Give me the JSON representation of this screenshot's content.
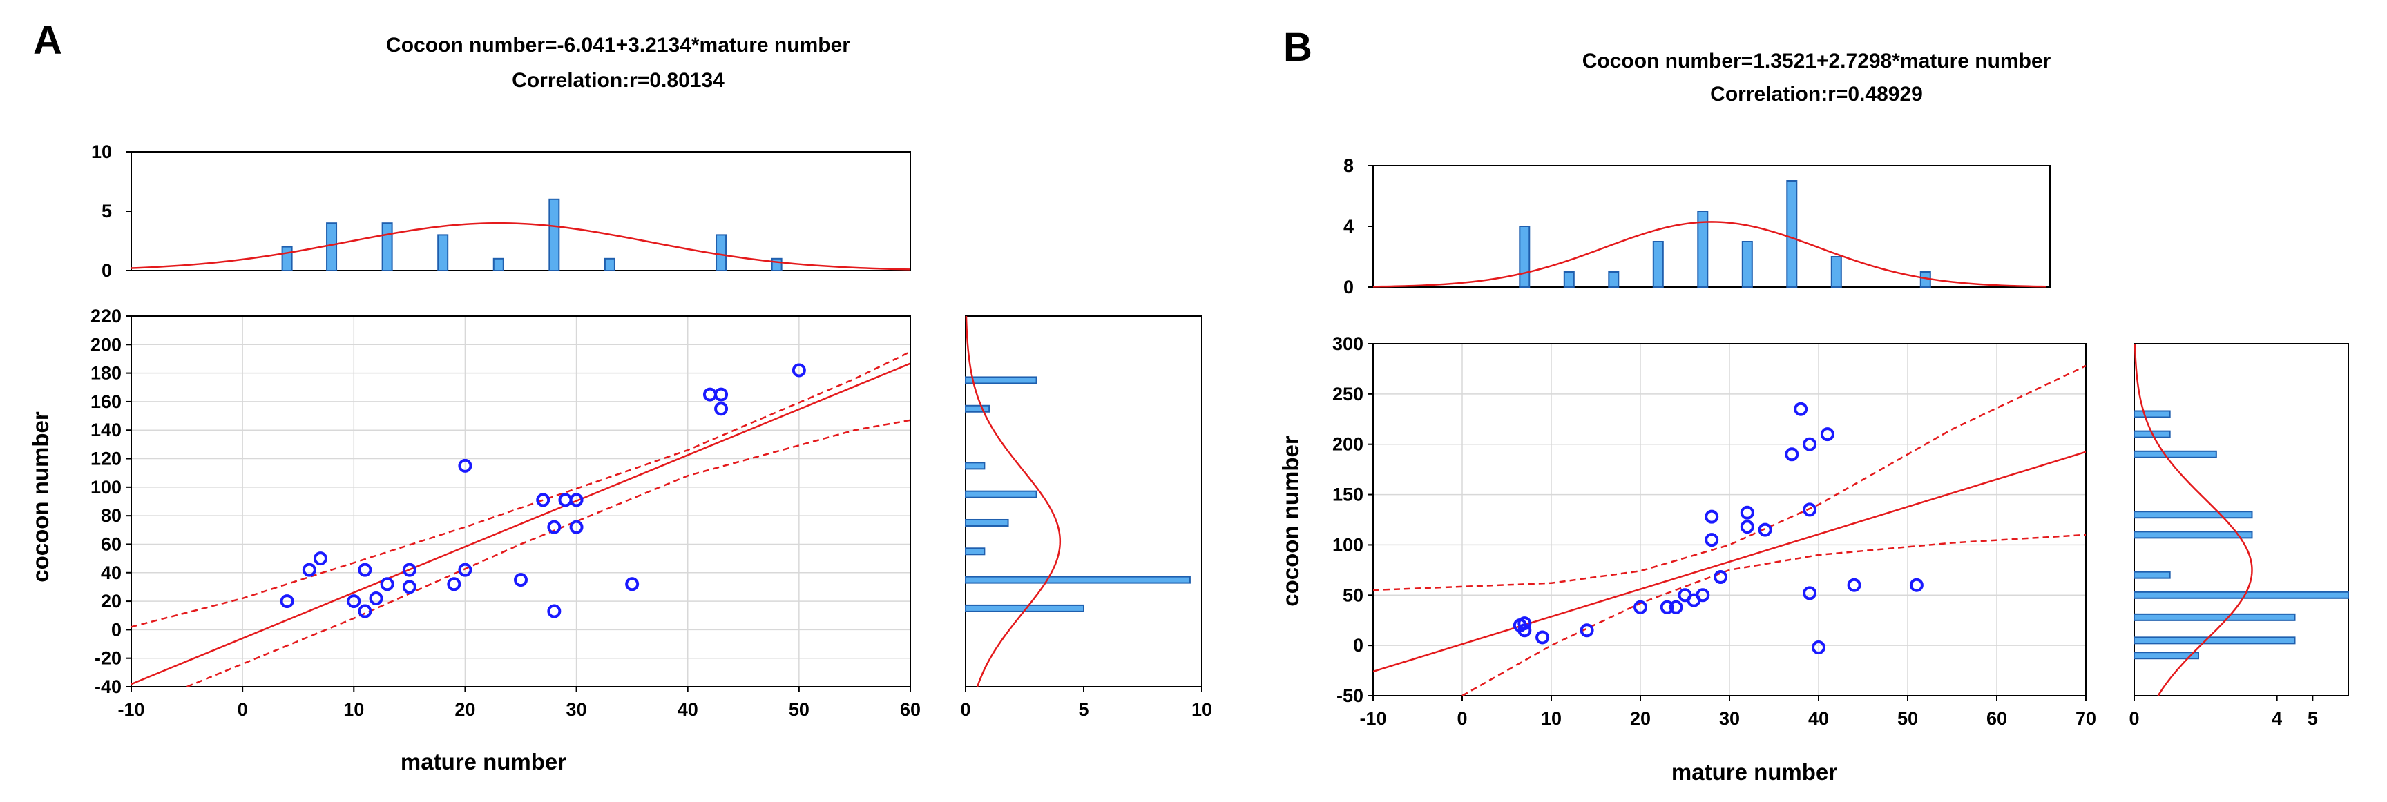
{
  "chart_data": [
    {
      "panel": "A",
      "type": "scatter",
      "title": "Cocoon number=-6.041+3.2134*mature number",
      "subtitle": "Correlation:r=0.80134",
      "xlabel": "mature number",
      "ylabel": "cocoon number",
      "xlim": [
        -10,
        60
      ],
      "ylim": [
        -40,
        220
      ],
      "xticks": [
        -10,
        0,
        10,
        20,
        30,
        40,
        50,
        60
      ],
      "yticks": [
        -40,
        -20,
        0,
        20,
        40,
        60,
        80,
        100,
        120,
        140,
        160,
        180,
        200,
        220
      ],
      "regression": {
        "intercept": -6.041,
        "slope": 3.2134
      },
      "confidence_band": {
        "upper": [
          [
            -10,
            2
          ],
          [
            0,
            22
          ],
          [
            20,
            72
          ],
          [
            40,
            126
          ],
          [
            55,
            176
          ],
          [
            60,
            195
          ]
        ],
        "lower": [
          [
            -5,
            -40
          ],
          [
            10,
            8
          ],
          [
            25,
            60
          ],
          [
            40,
            108
          ],
          [
            55,
            140
          ],
          [
            60,
            147
          ]
        ]
      },
      "points": [
        {
          "x": 4,
          "y": 20
        },
        {
          "x": 6,
          "y": 42
        },
        {
          "x": 7,
          "y": 50
        },
        {
          "x": 10,
          "y": 20
        },
        {
          "x": 11,
          "y": 13
        },
        {
          "x": 11,
          "y": 42
        },
        {
          "x": 12,
          "y": 22
        },
        {
          "x": 13,
          "y": 32
        },
        {
          "x": 15,
          "y": 30
        },
        {
          "x": 15,
          "y": 42
        },
        {
          "x": 19,
          "y": 32
        },
        {
          "x": 20,
          "y": 42
        },
        {
          "x": 20,
          "y": 115
        },
        {
          "x": 25,
          "y": 35
        },
        {
          "x": 27,
          "y": 91
        },
        {
          "x": 28,
          "y": 13
        },
        {
          "x": 28,
          "y": 72
        },
        {
          "x": 29,
          "y": 91
        },
        {
          "x": 30,
          "y": 72
        },
        {
          "x": 30,
          "y": 91
        },
        {
          "x": 35,
          "y": 32
        },
        {
          "x": 42,
          "y": 165
        },
        {
          "x": 43,
          "y": 155
        },
        {
          "x": 43,
          "y": 165
        },
        {
          "x": 50,
          "y": 182
        }
      ],
      "top_histogram": {
        "ylim": [
          0,
          10
        ],
        "yticks": [
          0,
          5,
          10
        ],
        "bins": [
          {
            "x": 4,
            "count": 2
          },
          {
            "x": 8,
            "count": 4
          },
          {
            "x": 13,
            "count": 4
          },
          {
            "x": 18,
            "count": 3
          },
          {
            "x": 23,
            "count": 1
          },
          {
            "x": 28,
            "count": 6
          },
          {
            "x": 33,
            "count": 1
          },
          {
            "x": 43,
            "count": 3
          },
          {
            "x": 48,
            "count": 1
          }
        ],
        "normal_curve": {
          "mean": 23,
          "sd": 13.5,
          "peak": 4
        }
      },
      "right_histogram": {
        "xlim": [
          0,
          10
        ],
        "xticks": [
          0,
          5,
          10
        ],
        "bins": [
          {
            "y": 15,
            "count": 5
          },
          {
            "y": 35,
            "count": 9.5
          },
          {
            "y": 55,
            "count": 0.8
          },
          {
            "y": 75,
            "count": 1.8
          },
          {
            "y": 95,
            "count": 3
          },
          {
            "y": 115,
            "count": 0.8
          },
          {
            "y": 155,
            "count": 1
          },
          {
            "y": 175,
            "count": 3
          }
        ],
        "normal_curve": {
          "mean": 62,
          "sd": 50,
          "peak": 4
        }
      }
    },
    {
      "panel": "B",
      "type": "scatter",
      "title": "Cocoon number=1.3521+2.7298*mature number",
      "subtitle": "Correlation:r=0.48929",
      "xlabel": "mature number",
      "ylabel": "cocoon number",
      "xlim": [
        -10,
        70
      ],
      "ylim": [
        -50,
        300
      ],
      "xticks": [
        -10,
        0,
        10,
        20,
        30,
        40,
        50,
        60,
        70
      ],
      "yticks": [
        -50,
        0,
        50,
        100,
        150,
        200,
        250,
        300
      ],
      "regression": {
        "intercept": 1.3521,
        "slope": 2.7298
      },
      "confidence_band": {
        "upper": [
          [
            -10,
            55
          ],
          [
            10,
            62
          ],
          [
            20,
            74
          ],
          [
            30,
            100
          ],
          [
            40,
            140
          ],
          [
            55,
            215
          ],
          [
            70,
            278
          ]
        ],
        "lower": [
          [
            0,
            -50
          ],
          [
            10,
            0
          ],
          [
            20,
            42
          ],
          [
            30,
            75
          ],
          [
            40,
            90
          ],
          [
            55,
            102
          ],
          [
            70,
            110
          ]
        ]
      },
      "points": [
        {
          "x": 6.5,
          "y": 20
        },
        {
          "x": 7,
          "y": 15
        },
        {
          "x": 7,
          "y": 22
        },
        {
          "x": 9,
          "y": 8
        },
        {
          "x": 14,
          "y": 15
        },
        {
          "x": 20,
          "y": 38
        },
        {
          "x": 23,
          "y": 38
        },
        {
          "x": 24,
          "y": 38
        },
        {
          "x": 25,
          "y": 50
        },
        {
          "x": 26,
          "y": 45
        },
        {
          "x": 27,
          "y": 50
        },
        {
          "x": 28,
          "y": 105
        },
        {
          "x": 28,
          "y": 128
        },
        {
          "x": 29,
          "y": 68
        },
        {
          "x": 32,
          "y": 118
        },
        {
          "x": 32,
          "y": 132
        },
        {
          "x": 34,
          "y": 115
        },
        {
          "x": 37,
          "y": 190
        },
        {
          "x": 38,
          "y": 235
        },
        {
          "x": 39,
          "y": 200
        },
        {
          "x": 39,
          "y": 135
        },
        {
          "x": 39,
          "y": 52
        },
        {
          "x": 40,
          "y": -2
        },
        {
          "x": 41,
          "y": 210
        },
        {
          "x": 44,
          "y": 60
        },
        {
          "x": 51,
          "y": 60
        }
      ],
      "top_histogram": {
        "ylim": [
          0,
          8
        ],
        "yticks": [
          0,
          4,
          8
        ],
        "bins": [
          {
            "x": 7,
            "count": 4
          },
          {
            "x": 12,
            "count": 1
          },
          {
            "x": 17,
            "count": 1
          },
          {
            "x": 22,
            "count": 3
          },
          {
            "x": 27,
            "count": 5
          },
          {
            "x": 32,
            "count": 3
          },
          {
            "x": 37,
            "count": 7
          },
          {
            "x": 42,
            "count": 2
          },
          {
            "x": 52,
            "count": 1
          }
        ],
        "normal_curve": {
          "mean": 28,
          "sd": 12,
          "peak": 4.3
        }
      },
      "right_histogram": {
        "xlim": [
          0,
          6
        ],
        "xticks": [
          0,
          4,
          5
        ],
        "bins": [
          {
            "y": -10,
            "count": 1.8
          },
          {
            "y": 5,
            "count": 4.5
          },
          {
            "y": 28,
            "count": 4.5
          },
          {
            "y": 50,
            "count": 6
          },
          {
            "y": 70,
            "count": 1
          },
          {
            "y": 110,
            "count": 3.3
          },
          {
            "y": 130,
            "count": 3.3
          },
          {
            "y": 190,
            "count": 2.3
          },
          {
            "y": 210,
            "count": 1
          },
          {
            "y": 230,
            "count": 1
          }
        ],
        "normal_curve": {
          "mean": 75,
          "sd": 70,
          "peak": 3.3
        }
      }
    }
  ]
}
